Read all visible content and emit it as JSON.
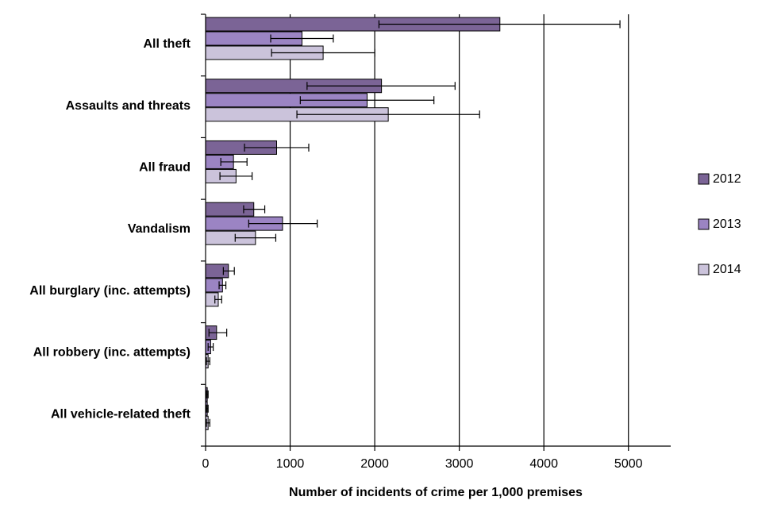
{
  "chart_data": {
    "type": "bar",
    "orientation": "horizontal",
    "xlabel": "Number of incidents of crime per 1,000 premises",
    "xlim": [
      0,
      5500
    ],
    "xticks": [
      0,
      1000,
      2000,
      3000,
      4000,
      5000
    ],
    "grid": true,
    "legend_position": "right",
    "categories": [
      "All theft",
      "Assaults and threats",
      "All fraud",
      "Vandalism",
      "All burglary (inc. attempts)",
      "All robbery (inc. attempts)",
      "All vehicle-related theft"
    ],
    "series": [
      {
        "name": "2012",
        "color": "#7b6496",
        "values": [
          3480,
          2080,
          840,
          570,
          270,
          130,
          20
        ],
        "error_low": [
          2050,
          1200,
          460,
          450,
          210,
          40,
          10
        ],
        "error_high": [
          4900,
          2950,
          1220,
          700,
          340,
          250,
          30
        ]
      },
      {
        "name": "2013",
        "color": "#9b84c3",
        "values": [
          1140,
          1910,
          330,
          910,
          200,
          60,
          20
        ],
        "error_low": [
          770,
          1120,
          180,
          510,
          160,
          30,
          10
        ],
        "error_high": [
          1510,
          2700,
          490,
          1320,
          240,
          90,
          30
        ]
      },
      {
        "name": "2014",
        "color": "#cbc3db",
        "values": [
          1390,
          2160,
          360,
          590,
          150,
          30,
          30
        ],
        "error_low": [
          780,
          1080,
          170,
          350,
          110,
          10,
          10
        ],
        "error_high": [
          2000,
          3240,
          550,
          830,
          190,
          50,
          50
        ]
      }
    ]
  }
}
